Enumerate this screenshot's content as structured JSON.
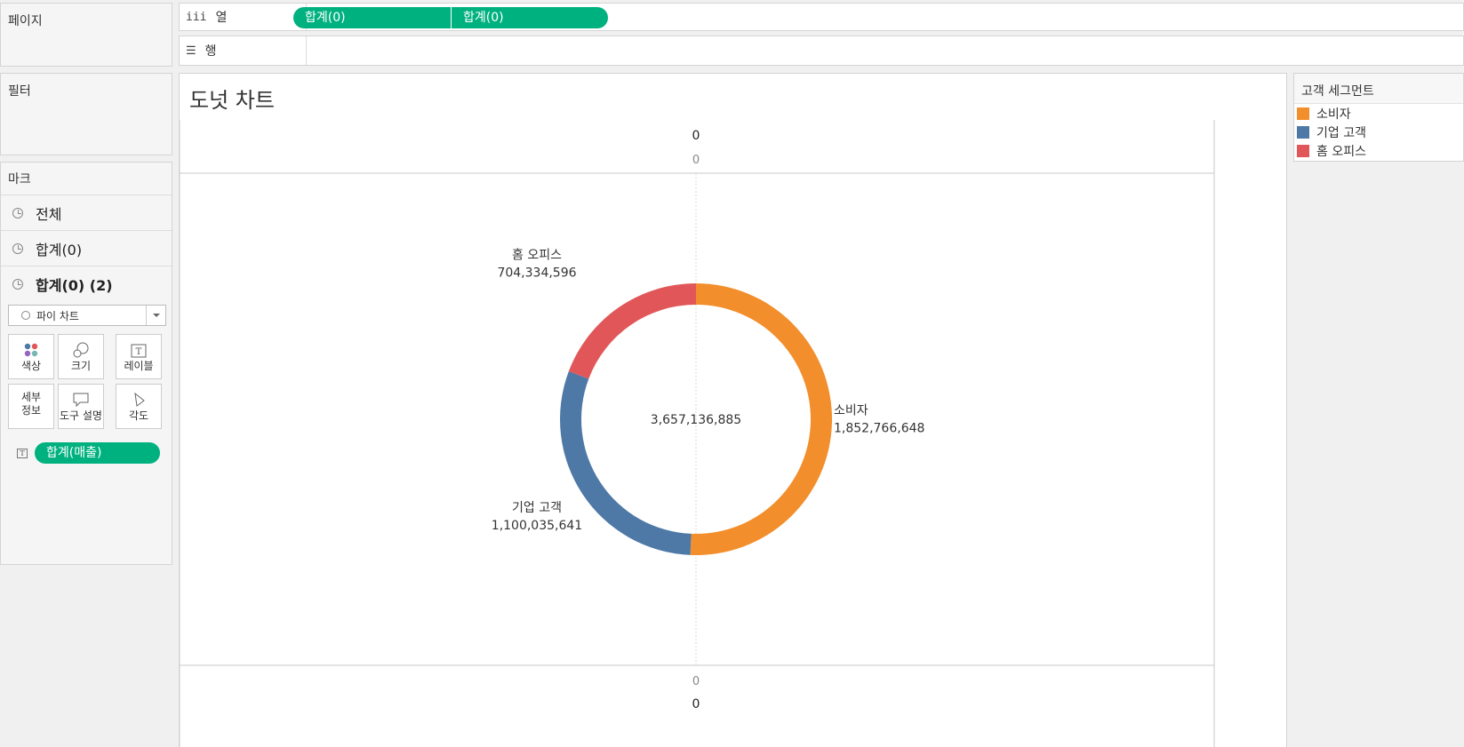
{
  "pages_panel": {
    "title": "페이지"
  },
  "filters_panel": {
    "title": "필터"
  },
  "marks_panel": {
    "title": "마크",
    "layers": [
      {
        "label": "전체",
        "bold": false
      },
      {
        "label": "합계(0)",
        "bold": false
      },
      {
        "label": "합계(0) (2)",
        "bold": true
      }
    ],
    "mark_type": "파이 차트",
    "cards": {
      "color": "색상",
      "size": "크기",
      "label": "레이블",
      "detail": "세부\n정보",
      "tooltip": "도구 설명",
      "angle": "각도"
    },
    "label_field": "합계(매출)"
  },
  "columns_shelf": {
    "label": "열",
    "pills": [
      "합계(0)",
      "합계(0)"
    ]
  },
  "rows_shelf": {
    "label": "행"
  },
  "legend": {
    "title": "고객 세그먼트",
    "items": [
      {
        "label": "소비자",
        "color": "#f28e2b"
      },
      {
        "label": "기업 고객",
        "color": "#4e79a7"
      },
      {
        "label": "홈 오피스",
        "color": "#e15759"
      }
    ]
  },
  "chart_data": {
    "type": "pie",
    "title": "도넛 차트",
    "variant": "donut",
    "center_label": "3,657,136,885",
    "axis_top": {
      "header": "0",
      "tick": "0"
    },
    "axis_bottom": {
      "header": "0",
      "tick": "0"
    },
    "series": [
      {
        "name": "소비자",
        "value": 1852766648,
        "label": "1,852,766,648",
        "color": "#f28e2b"
      },
      {
        "name": "기업 고객",
        "value": 1100035641,
        "label": "1,100,035,641",
        "color": "#4e79a7"
      },
      {
        "name": "홈 오피스",
        "value": 704334596,
        "label": "704,334,596",
        "color": "#e15759"
      }
    ]
  }
}
